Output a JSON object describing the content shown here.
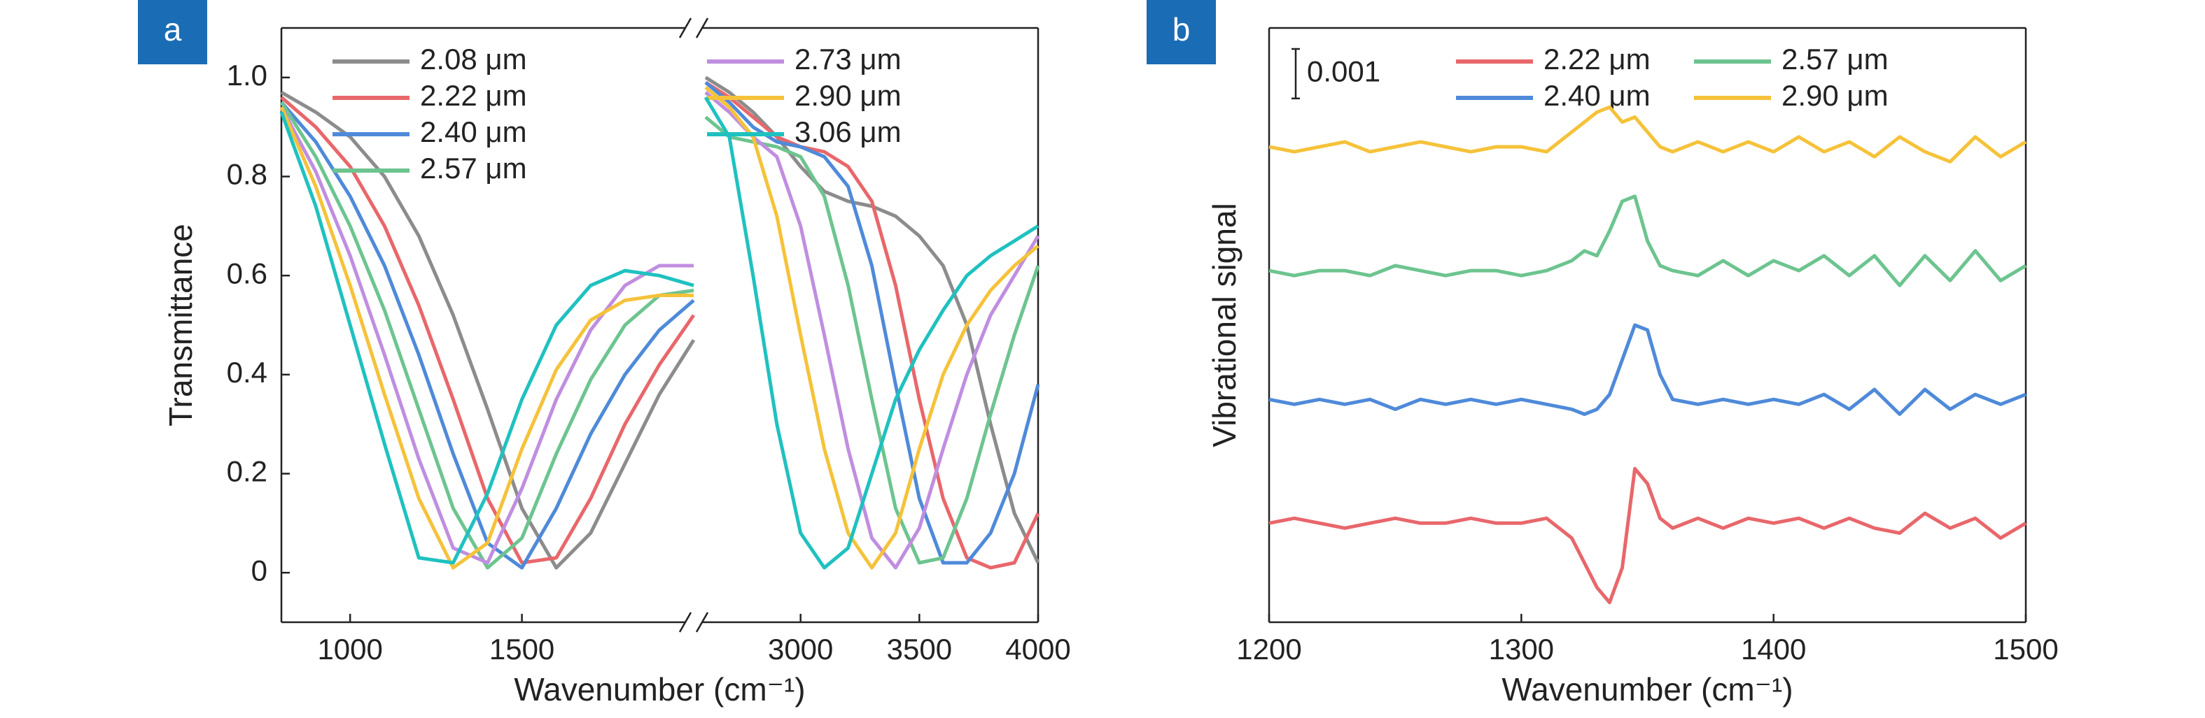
{
  "chart_data": [
    {
      "type": "line",
      "label": "a",
      "xlabel": "Wavenumber (cm⁻¹)",
      "ylabel": "Transmittance",
      "xlim": [
        [
          800,
          2000
        ],
        [
          2550,
          4000
        ]
      ],
      "xticks": [
        1000,
        1500,
        3000,
        3500,
        4000
      ],
      "ylim": [
        -0.1,
        1.1
      ],
      "yticks": [
        0,
        0.2,
        0.4,
        0.6,
        0.8,
        {
          "value": 1,
          "label": "1.0"
        }
      ],
      "x": [
        800,
        900,
        1000,
        1100,
        1200,
        1300,
        1400,
        1500,
        1600,
        1700,
        1800,
        1900,
        2000,
        2600,
        2700,
        2800,
        2900,
        3000,
        3100,
        3200,
        3300,
        3400,
        3500,
        3600,
        3700,
        3800,
        3900,
        4000
      ],
      "series": [
        {
          "name": "2.08 μm",
          "color": "#8c8c8c",
          "values": [
            0.97,
            0.93,
            0.88,
            0.8,
            0.68,
            0.52,
            0.33,
            0.13,
            0.01,
            0.08,
            0.22,
            0.36,
            0.47,
            1.0,
            0.97,
            0.93,
            0.88,
            0.82,
            0.77,
            0.75,
            0.74,
            0.72,
            0.68,
            0.62,
            0.5,
            0.3,
            0.12,
            0.02
          ]
        },
        {
          "name": "2.22 μm",
          "color": "#e8676b",
          "values": [
            0.96,
            0.9,
            0.82,
            0.7,
            0.54,
            0.35,
            0.15,
            0.02,
            0.03,
            0.15,
            0.3,
            0.42,
            0.52,
            0.99,
            0.96,
            0.92,
            0.88,
            0.86,
            0.85,
            0.82,
            0.75,
            0.58,
            0.35,
            0.15,
            0.03,
            0.01,
            0.02,
            0.12
          ]
        },
        {
          "name": "2.40 μm",
          "color": "#4f8ad9",
          "values": [
            0.95,
            0.87,
            0.76,
            0.62,
            0.44,
            0.24,
            0.06,
            0.01,
            0.13,
            0.28,
            0.4,
            0.49,
            0.55,
            0.99,
            0.95,
            0.9,
            0.87,
            0.86,
            0.84,
            0.78,
            0.62,
            0.38,
            0.15,
            0.02,
            0.02,
            0.08,
            0.2,
            0.38
          ]
        },
        {
          "name": "2.57 μm",
          "color": "#6dc48f",
          "values": [
            0.95,
            0.84,
            0.7,
            0.53,
            0.33,
            0.13,
            0.01,
            0.07,
            0.24,
            0.39,
            0.5,
            0.56,
            0.57,
            0.92,
            0.88,
            0.87,
            0.86,
            0.84,
            0.76,
            0.58,
            0.35,
            0.13,
            0.02,
            0.03,
            0.15,
            0.32,
            0.48,
            0.62
          ]
        },
        {
          "name": "2.73 μm",
          "color": "#c08ee0",
          "values": [
            0.94,
            0.81,
            0.64,
            0.44,
            0.23,
            0.05,
            0.02,
            0.17,
            0.35,
            0.49,
            0.58,
            0.62,
            0.62,
            0.97,
            0.93,
            0.88,
            0.84,
            0.7,
            0.48,
            0.25,
            0.07,
            0.01,
            0.09,
            0.25,
            0.4,
            0.52,
            0.6,
            0.68
          ]
        },
        {
          "name": "2.90 μm",
          "color": "#f5c23a",
          "values": [
            0.94,
            0.78,
            0.58,
            0.36,
            0.15,
            0.01,
            0.06,
            0.25,
            0.41,
            0.51,
            0.55,
            0.56,
            0.56,
            0.98,
            0.94,
            0.88,
            0.72,
            0.48,
            0.25,
            0.08,
            0.01,
            0.08,
            0.25,
            0.4,
            0.5,
            0.57,
            0.62,
            0.66
          ]
        },
        {
          "name": "3.06 μm",
          "color": "#1fc1c0",
          "values": [
            0.93,
            0.74,
            0.5,
            0.26,
            0.03,
            0.02,
            0.16,
            0.35,
            0.5,
            0.58,
            0.61,
            0.6,
            0.58,
            0.96,
            0.88,
            0.6,
            0.3,
            0.08,
            0.01,
            0.05,
            0.2,
            0.35,
            0.45,
            0.53,
            0.6,
            0.64,
            0.67,
            0.7
          ]
        }
      ]
    },
    {
      "type": "line",
      "label": "b",
      "xlabel": "Wavenumber (cm⁻¹)",
      "ylabel": "Vibrational signal",
      "xlim": [
        1200,
        1500
      ],
      "xticks": [
        1200,
        1300,
        1400,
        1500
      ],
      "ylim": [
        0,
        0.012
      ],
      "scalebar": 0.001,
      "x": [
        1200,
        1210,
        1220,
        1230,
        1240,
        1250,
        1260,
        1270,
        1280,
        1290,
        1300,
        1310,
        1320,
        1325,
        1330,
        1335,
        1340,
        1345,
        1350,
        1355,
        1360,
        1370,
        1380,
        1390,
        1400,
        1410,
        1420,
        1430,
        1440,
        1450,
        1460,
        1470,
        1480,
        1490,
        1500
      ],
      "series": [
        {
          "name": "2.22 μm",
          "color": "#e8676b",
          "values": [
            0.002,
            0.0021,
            0.002,
            0.0019,
            0.002,
            0.0021,
            0.002,
            0.002,
            0.0021,
            0.002,
            0.002,
            0.0021,
            0.0017,
            0.0012,
            0.0007,
            0.0004,
            0.0011,
            0.0031,
            0.0028,
            0.0021,
            0.0019,
            0.0021,
            0.0019,
            0.0021,
            0.002,
            0.0021,
            0.0019,
            0.0021,
            0.0019,
            0.0018,
            0.0022,
            0.0019,
            0.0021,
            0.0017,
            0.002
          ]
        },
        {
          "name": "2.40 μm",
          "color": "#4f8ad9",
          "values": [
            0.0045,
            0.0044,
            0.0045,
            0.0044,
            0.0045,
            0.0043,
            0.0045,
            0.0044,
            0.0045,
            0.0044,
            0.0045,
            0.0044,
            0.0043,
            0.0042,
            0.0043,
            0.0046,
            0.0053,
            0.006,
            0.0059,
            0.005,
            0.0045,
            0.0044,
            0.0045,
            0.0044,
            0.0045,
            0.0044,
            0.0046,
            0.0043,
            0.0047,
            0.0042,
            0.0047,
            0.0043,
            0.0046,
            0.0044,
            0.0046
          ]
        },
        {
          "name": "2.57 μm",
          "color": "#6dc48f",
          "values": [
            0.0071,
            0.007,
            0.0071,
            0.0071,
            0.007,
            0.0072,
            0.0071,
            0.007,
            0.0071,
            0.0071,
            0.007,
            0.0071,
            0.0073,
            0.0075,
            0.0074,
            0.0079,
            0.0085,
            0.0086,
            0.0077,
            0.0072,
            0.0071,
            0.007,
            0.0073,
            0.007,
            0.0073,
            0.0071,
            0.0074,
            0.007,
            0.0074,
            0.0068,
            0.0074,
            0.0069,
            0.0075,
            0.0069,
            0.0072
          ]
        },
        {
          "name": "2.90 μm",
          "color": "#f5c23a",
          "values": [
            0.0096,
            0.0095,
            0.0096,
            0.0097,
            0.0095,
            0.0096,
            0.0097,
            0.0096,
            0.0095,
            0.0096,
            0.0096,
            0.0095,
            0.0099,
            0.0101,
            0.0103,
            0.0104,
            0.0101,
            0.0102,
            0.0099,
            0.0096,
            0.0095,
            0.0097,
            0.0095,
            0.0097,
            0.0095,
            0.0098,
            0.0095,
            0.0097,
            0.0094,
            0.0098,
            0.0095,
            0.0093,
            0.0098,
            0.0094,
            0.0097
          ]
        }
      ]
    }
  ]
}
